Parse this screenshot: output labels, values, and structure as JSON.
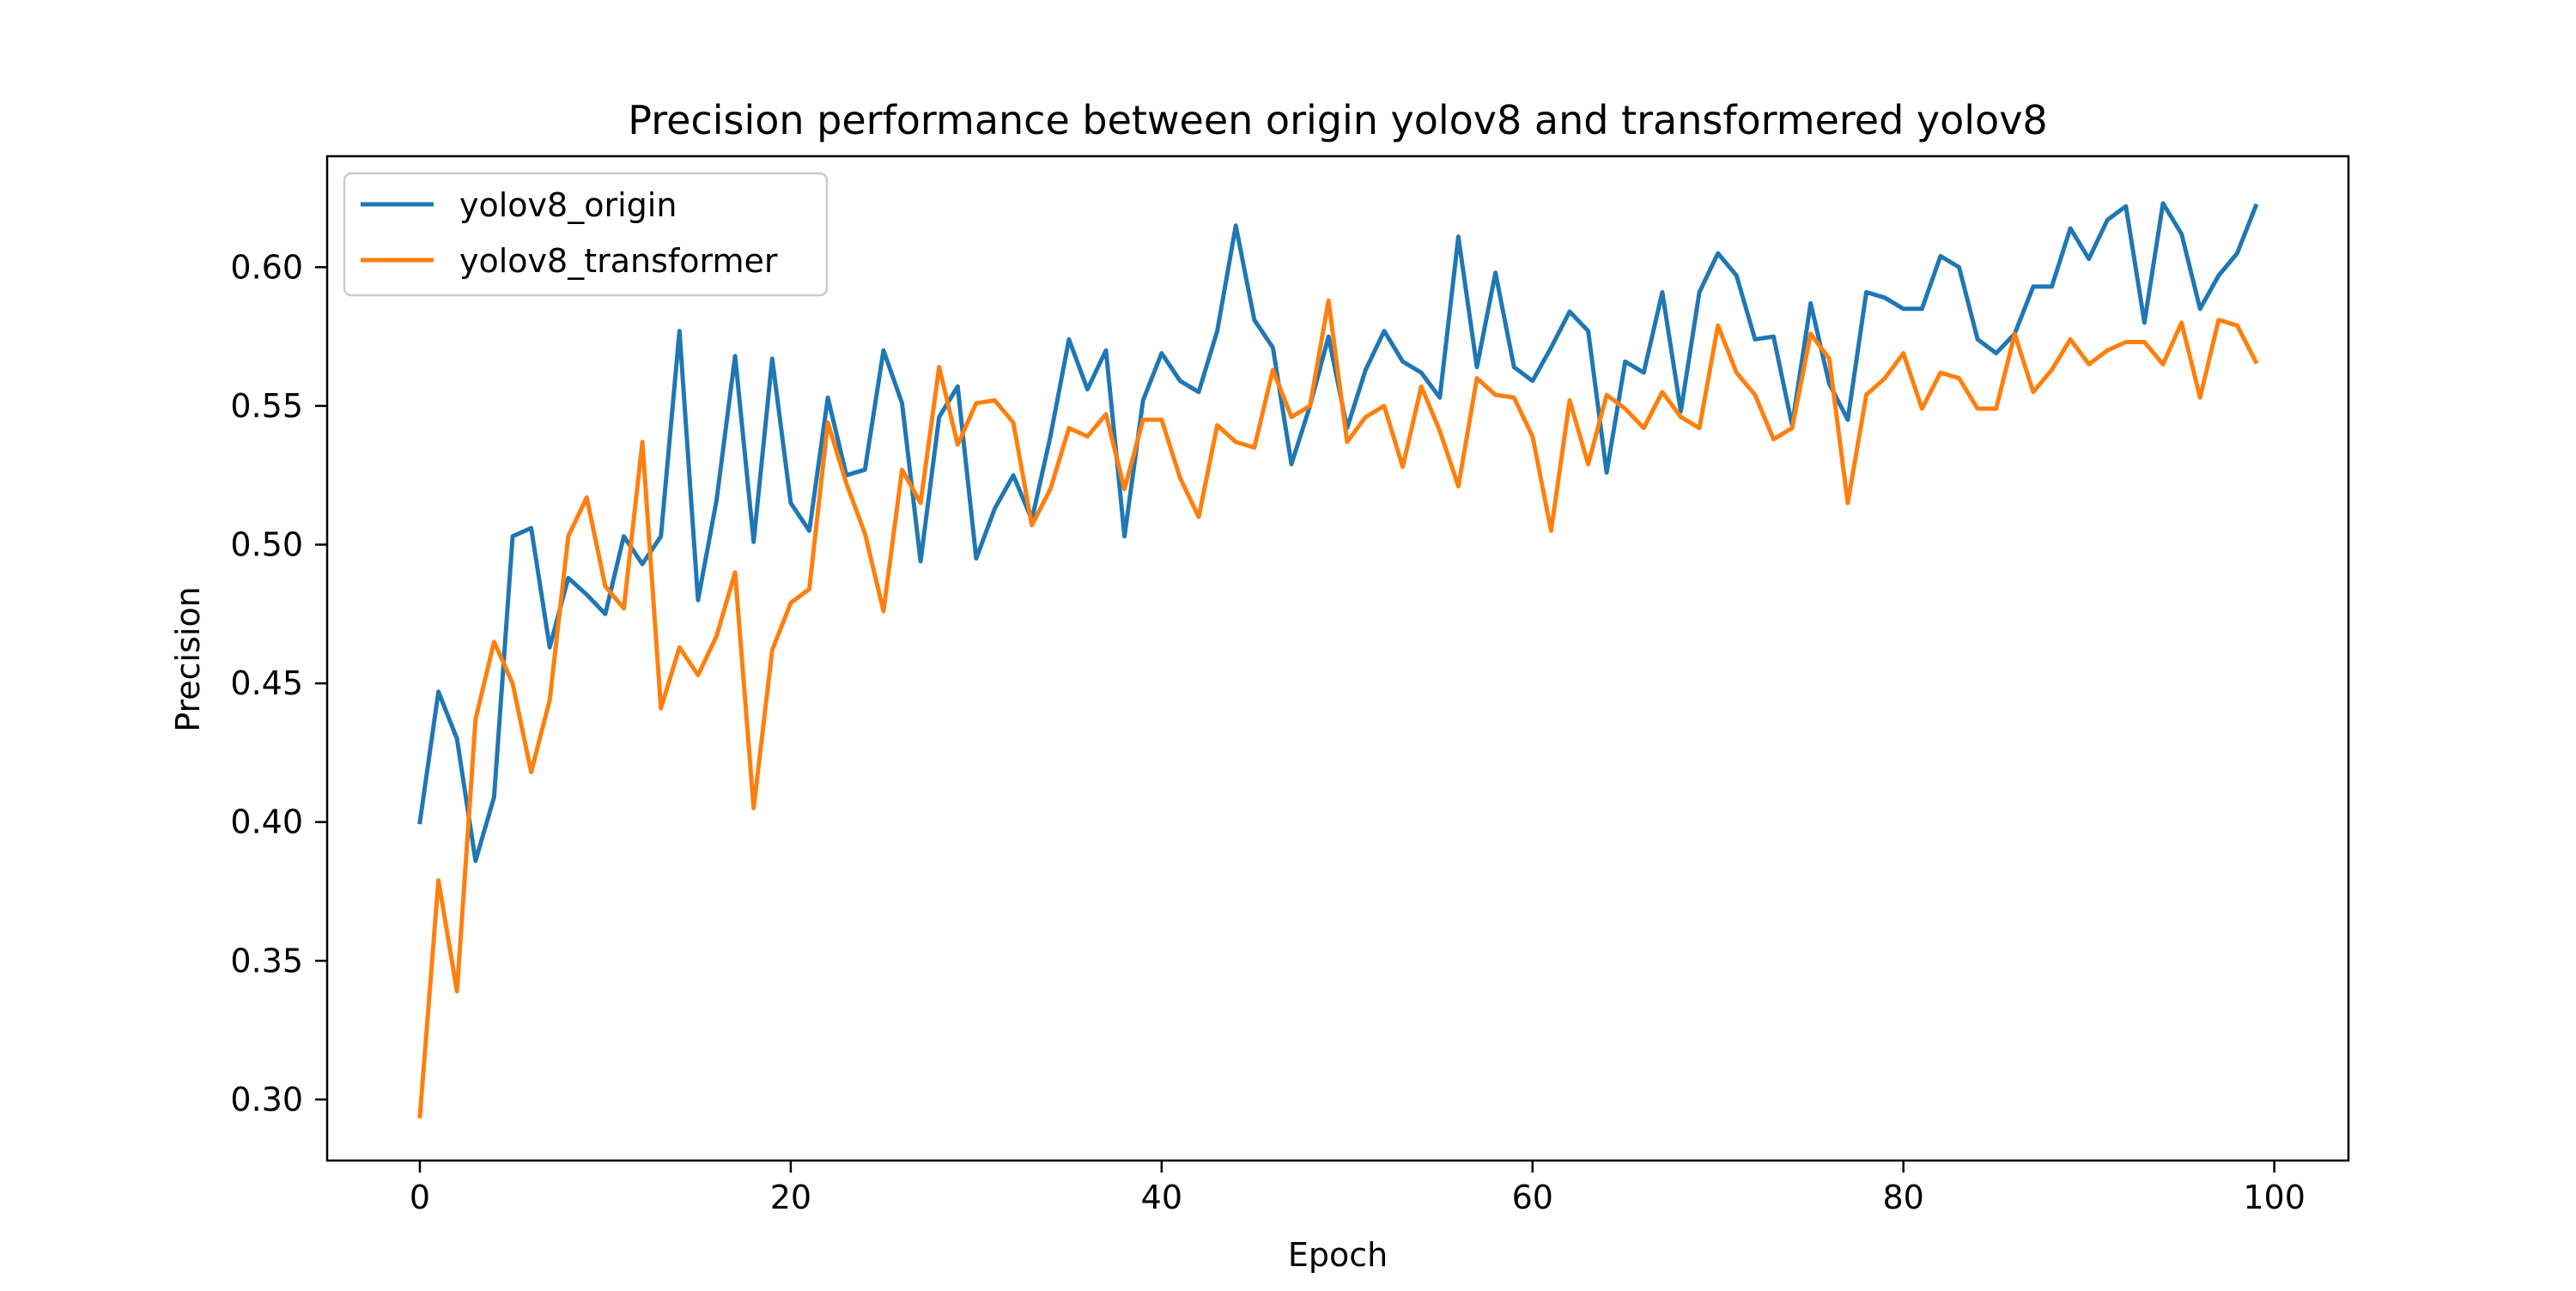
{
  "chart_data": {
    "type": "line",
    "title": "Precision performance between origin yolov8 and transformered yolov8",
    "xlabel": "Epoch",
    "ylabel": "Precision",
    "xlim": [
      -5,
      104
    ],
    "ylim": [
      0.278,
      0.64
    ],
    "xticks": [
      0,
      20,
      40,
      60,
      80,
      100
    ],
    "yticks": [
      0.3,
      0.35,
      0.4,
      0.45,
      0.5,
      0.55,
      0.6
    ],
    "ytick_labels": [
      "0.30",
      "0.35",
      "0.40",
      "0.45",
      "0.50",
      "0.55",
      "0.60"
    ],
    "grid": false,
    "legend_position": "top-left",
    "x": [
      0,
      1,
      2,
      3,
      4,
      5,
      6,
      7,
      8,
      9,
      10,
      11,
      12,
      13,
      14,
      15,
      16,
      17,
      18,
      19,
      20,
      21,
      22,
      23,
      24,
      25,
      26,
      27,
      28,
      29,
      30,
      31,
      32,
      33,
      34,
      35,
      36,
      37,
      38,
      39,
      40,
      41,
      42,
      43,
      44,
      45,
      46,
      47,
      48,
      49,
      50,
      51,
      52,
      53,
      54,
      55,
      56,
      57,
      58,
      59,
      60,
      61,
      62,
      63,
      64,
      65,
      66,
      67,
      68,
      69,
      70,
      71,
      72,
      73,
      74,
      75,
      76,
      77,
      78,
      79,
      80,
      81,
      82,
      83,
      84,
      85,
      86,
      87,
      88,
      89,
      90,
      91,
      92,
      93,
      94,
      95,
      96,
      97,
      98,
      99
    ],
    "series": [
      {
        "name": "yolov8_origin",
        "color": "#1f77b4",
        "values": [
          0.4,
          0.447,
          0.43,
          0.386,
          0.409,
          0.503,
          0.506,
          0.463,
          0.488,
          0.482,
          0.475,
          0.503,
          0.493,
          0.503,
          0.577,
          0.48,
          0.516,
          0.568,
          0.501,
          0.567,
          0.515,
          0.505,
          0.553,
          0.525,
          0.527,
          0.57,
          0.551,
          0.494,
          0.546,
          0.557,
          0.495,
          0.513,
          0.525,
          0.509,
          0.539,
          0.574,
          0.556,
          0.57,
          0.503,
          0.552,
          0.569,
          0.559,
          0.555,
          0.577,
          0.615,
          0.581,
          0.571,
          0.529,
          0.55,
          0.575,
          0.542,
          0.563,
          0.577,
          0.566,
          0.562,
          0.553,
          0.611,
          0.564,
          0.598,
          0.564,
          0.559,
          0.571,
          0.584,
          0.577,
          0.526,
          0.566,
          0.562,
          0.591,
          0.548,
          0.591,
          0.605,
          0.597,
          0.574,
          0.575,
          0.543,
          0.587,
          0.558,
          0.545,
          0.591,
          0.589,
          0.585,
          0.585,
          0.604,
          0.6,
          0.574,
          0.569,
          0.576,
          0.593,
          0.593,
          0.614,
          0.603,
          0.617,
          0.622,
          0.58,
          0.623,
          0.612,
          0.585,
          0.597,
          0.605,
          0.622
        ]
      },
      {
        "name": "yolov8_transformer",
        "color": "#ff7f0e",
        "values": [
          0.294,
          0.379,
          0.339,
          0.437,
          0.465,
          0.45,
          0.418,
          0.444,
          0.503,
          0.517,
          0.485,
          0.477,
          0.537,
          0.441,
          0.463,
          0.453,
          0.467,
          0.49,
          0.405,
          0.462,
          0.479,
          0.484,
          0.544,
          0.522,
          0.504,
          0.476,
          0.527,
          0.515,
          0.564,
          0.536,
          0.551,
          0.552,
          0.544,
          0.507,
          0.52,
          0.542,
          0.539,
          0.547,
          0.52,
          0.545,
          0.545,
          0.524,
          0.51,
          0.543,
          0.537,
          0.535,
          0.563,
          0.546,
          0.55,
          0.588,
          0.537,
          0.546,
          0.55,
          0.528,
          0.557,
          0.541,
          0.521,
          0.56,
          0.554,
          0.553,
          0.539,
          0.505,
          0.552,
          0.529,
          0.554,
          0.549,
          0.542,
          0.555,
          0.546,
          0.542,
          0.579,
          0.562,
          0.554,
          0.538,
          0.542,
          0.576,
          0.567,
          0.515,
          0.554,
          0.56,
          0.569,
          0.549,
          0.562,
          0.56,
          0.549,
          0.549,
          0.576,
          0.555,
          0.563,
          0.574,
          0.565,
          0.57,
          0.573,
          0.573,
          0.565,
          0.58,
          0.553,
          0.581,
          0.579,
          0.566
        ]
      }
    ]
  }
}
